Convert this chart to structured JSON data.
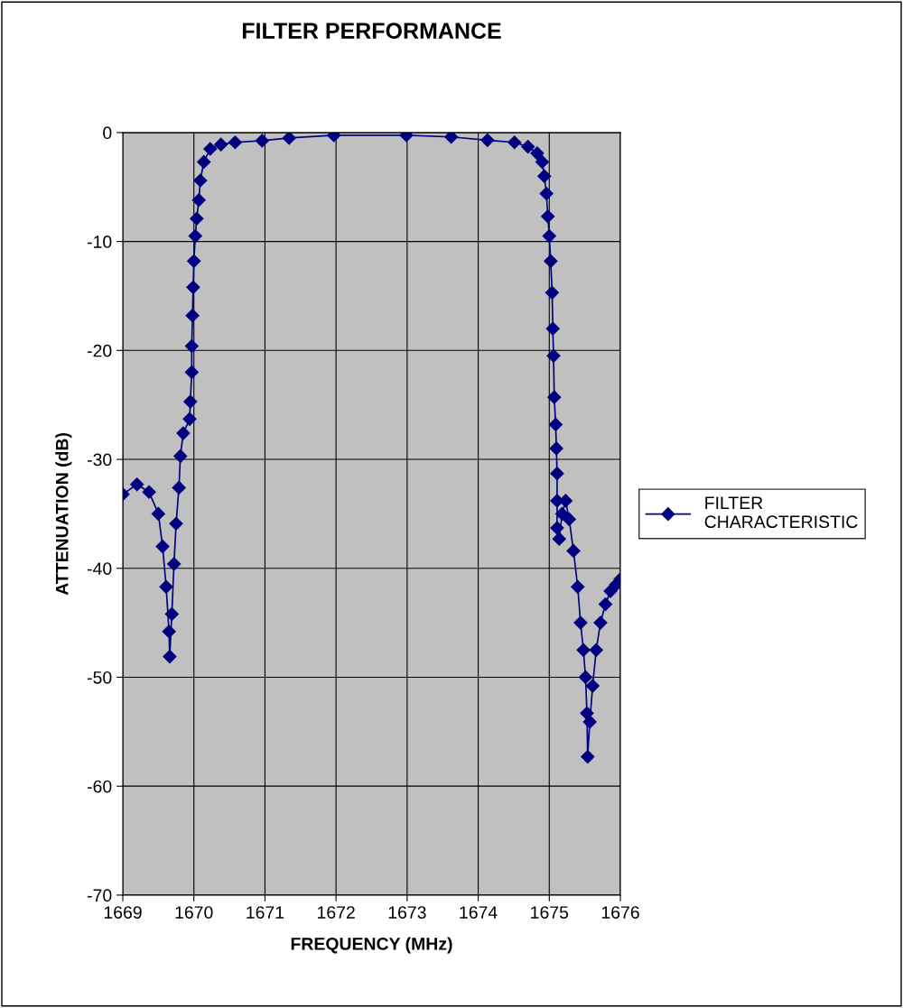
{
  "chart_data": {
    "type": "line",
    "title": "FILTER PERFORMANCE",
    "xlabel": "FREQUENCY (MHz)",
    "ylabel": "ATTENUATION (dB)",
    "xlim": [
      1669,
      1676
    ],
    "xticks": [
      1669,
      1670,
      1671,
      1672,
      1673,
      1674,
      1675,
      1676
    ],
    "ylim": [
      -70,
      0
    ],
    "yticks": [
      -70,
      -60,
      -50,
      -40,
      -30,
      -20,
      -10,
      0
    ],
    "grid": true,
    "legend": "right",
    "marker": "diamond",
    "line_style": "solid",
    "series": [
      {
        "name": "FILTER CHARACTERISTIC",
        "color": "#000080",
        "x": [
          1669.0,
          1669.2,
          1669.37,
          1669.5,
          1669.56,
          1669.61,
          1669.65,
          1669.66,
          1669.69,
          1669.72,
          1669.75,
          1669.79,
          1669.81,
          1669.85,
          1669.94,
          1669.95,
          1669.97,
          1669.97,
          1669.98,
          1669.99,
          1670.0,
          1670.02,
          1670.04,
          1670.07,
          1670.09,
          1670.14,
          1670.23,
          1670.38,
          1670.58,
          1670.96,
          1671.34,
          1671.97,
          1672.99,
          1673.62,
          1674.13,
          1674.51,
          1674.7,
          1674.83,
          1674.9,
          1674.93,
          1674.96,
          1674.98,
          1675.0,
          1675.02,
          1675.04,
          1675.05,
          1675.06,
          1675.07,
          1675.09,
          1675.1,
          1675.11,
          1675.11,
          1675.11,
          1675.14,
          1675.18,
          1675.23,
          1675.28,
          1675.34,
          1675.4,
          1675.44,
          1675.48,
          1675.51,
          1675.53,
          1675.54,
          1675.57,
          1675.61,
          1675.66,
          1675.72,
          1675.79,
          1675.86,
          1675.94,
          1676.0
        ],
        "values": [
          -33.2,
          -32.3,
          -33,
          -35,
          -38,
          -41.7,
          -45.8,
          -48.1,
          -44.2,
          -39.6,
          -35.9,
          -32.6,
          -29.7,
          -27.6,
          -26.3,
          -24.7,
          -22,
          -19.6,
          -16.8,
          -14.2,
          -11.8,
          -9.5,
          -7.9,
          -6.2,
          -4.4,
          -2.7,
          -1.5,
          -1.1,
          -0.9,
          -0.75,
          -0.5,
          -0.25,
          -0.25,
          -0.4,
          -0.7,
          -0.9,
          -1.3,
          -1.9,
          -2.7,
          -4,
          -5.6,
          -7.7,
          -9.5,
          -11.8,
          -14.7,
          -18,
          -20.5,
          -24.3,
          -26.8,
          -29,
          -31.3,
          -33.8,
          -36.3,
          -37.3,
          -35,
          -33.8,
          -35.5,
          -38.4,
          -41.7,
          -45,
          -47.5,
          -50,
          -53.3,
          -57.3,
          -54.1,
          -50.8,
          -47.5,
          -45,
          -43.3,
          -42.1,
          -41.5,
          -41
        ]
      }
    ]
  }
}
